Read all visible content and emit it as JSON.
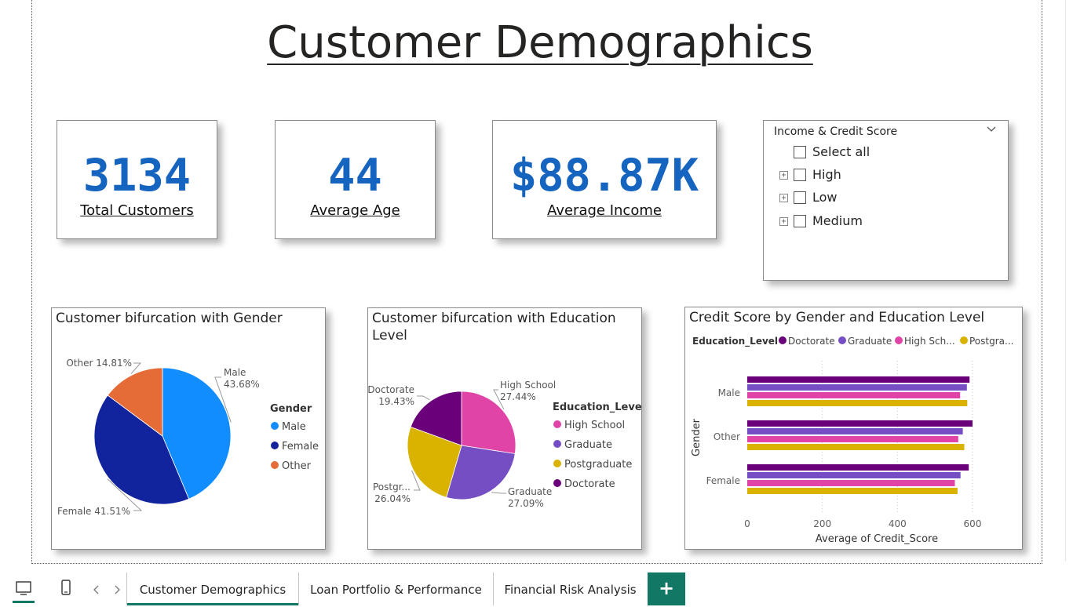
{
  "page": {
    "title": "Customer Demographics"
  },
  "kpis": [
    {
      "value": "3134",
      "label": "Total Customers"
    },
    {
      "value": "44",
      "label": "Average Age"
    },
    {
      "value": "$88.87K",
      "label": "Average Income"
    }
  ],
  "slicer": {
    "title": "Income & Credit Score",
    "select_all": "Select all",
    "items": [
      "High",
      "Low",
      "Medium"
    ]
  },
  "chart_data": [
    {
      "type": "pie",
      "title": "Customer bifurcation with Gender",
      "legend_title": "Gender",
      "legend_position": "right",
      "slices": [
        {
          "name": "Male",
          "value": 43.68,
          "label": "43.68%",
          "color": "#118dff"
        },
        {
          "name": "Female",
          "value": 41.51,
          "label": "41.51%",
          "color": "#12239e"
        },
        {
          "name": "Other",
          "value": 14.81,
          "label": "14.81%",
          "color": "#e66c37"
        }
      ]
    },
    {
      "type": "pie",
      "title": "Customer bifurcation with Education Level",
      "legend_title": "Education_Level",
      "legend_position": "right",
      "slices": [
        {
          "name": "High School",
          "value": 27.44,
          "label": "27.44%",
          "color": "#e044a7"
        },
        {
          "name": "Graduate",
          "value": 27.09,
          "label": "27.09%",
          "color": "#744ec2"
        },
        {
          "name": "Postgraduate",
          "short": "Postgr...",
          "value": 26.04,
          "label": "26.04%",
          "color": "#d9b300"
        },
        {
          "name": "Doctorate",
          "value": 19.43,
          "label": "19.43%",
          "color": "#6b007b"
        }
      ]
    },
    {
      "type": "bar",
      "orientation": "horizontal",
      "title": "Credit Score by Gender and Education Level",
      "legend_title": "Education_Level",
      "legend_position": "top",
      "ylabel": "Gender",
      "xlabel": "Average of Credit_Score",
      "xlim": [
        0,
        600
      ],
      "xticks": [
        0,
        200,
        400,
        600
      ],
      "categories": [
        "Male",
        "Other",
        "Female"
      ],
      "series": [
        {
          "name": "Doctorate",
          "legend_label": "Doctorate",
          "color": "#6b007b",
          "values": [
            592,
            600,
            590
          ]
        },
        {
          "name": "Graduate",
          "legend_label": "Graduate",
          "color": "#744ec2",
          "values": [
            585,
            574,
            568
          ]
        },
        {
          "name": "High School",
          "legend_label": "High Sch...",
          "color": "#e044a7",
          "values": [
            567,
            562,
            553
          ]
        },
        {
          "name": "Postgraduate",
          "legend_label": "Postgra...",
          "color": "#d9b300",
          "values": [
            586,
            578,
            560
          ]
        }
      ]
    }
  ],
  "tabs": {
    "items": [
      "Customer Demographics",
      "Loan Portfolio & Performance",
      "Financial Risk Analysis"
    ],
    "active": "Customer Demographics",
    "add_label": "+"
  }
}
